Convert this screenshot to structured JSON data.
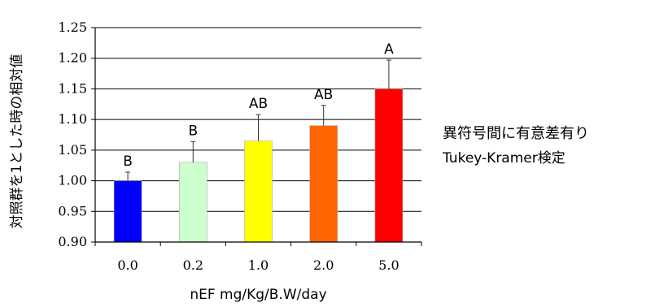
{
  "chart_data": {
    "type": "bar",
    "categories": [
      "0.0",
      "0.2",
      "1.0",
      "2.0",
      "5.0"
    ],
    "values": [
      1.0,
      1.03,
      1.065,
      1.09,
      1.15
    ],
    "errors": [
      0.014,
      0.034,
      0.043,
      0.033,
      0.047
    ],
    "group_labels": [
      "B",
      "B",
      "AB",
      "AB",
      "A"
    ],
    "bar_colors": [
      "#0000ff",
      "#ccffcc",
      "#ffff00",
      "#ff6600",
      "#ff0000"
    ],
    "xlabel": "nEF mg/Kg/B.W/day",
    "ylabel": "対照群を1とした時の相対値",
    "ylim": [
      0.9,
      1.25
    ],
    "yticks": [
      "0.90",
      "0.95",
      "1.00",
      "1.05",
      "1.10",
      "1.15",
      "1.20",
      "1.25"
    ],
    "grid": true
  },
  "notes": {
    "line1": "異符号間に有意差有り",
    "line2": "Tukey-Kramer検定"
  }
}
